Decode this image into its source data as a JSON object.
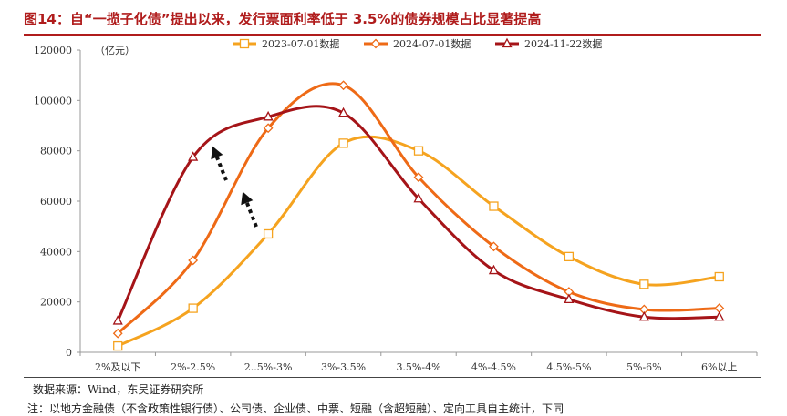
{
  "figure": {
    "title": "图14：自“一揽子化债”提出以来，发行票面利率低于 3.5%的债券规模占比显著提高",
    "source": "数据来源：Wind，东吴证券研究所",
    "note": "注：以地方金融债（不含政策性银行债）、公司债、企业债、中票、短融（含超短融）、定向工具自主统计，下同"
  },
  "colors": {
    "title": "#b01c1c",
    "series": [
      "#f5a31f",
      "#ee6a16",
      "#a51418"
    ],
    "arrow": "#111111",
    "axis": "#999999"
  },
  "chart_data": {
    "type": "line",
    "title": "",
    "xlabel": "",
    "ylabel": "（亿元）",
    "ylim": [
      0,
      120000
    ],
    "yticks": [
      0,
      20000,
      40000,
      60000,
      80000,
      100000,
      120000
    ],
    "ytick_labels": [
      "0",
      "20000",
      "40000",
      "60000",
      "80000",
      "100000",
      "120000"
    ],
    "grid": false,
    "legend_position": "top",
    "categories": [
      "2%及以下",
      "2%-2.5%",
      "2..5%-3%",
      "3%-3.5%",
      "3.5%-4%",
      "4%-4.5%",
      "4.5%-5%",
      "5%-6%",
      "6%以上"
    ],
    "series": [
      {
        "name": "2023-07-01数据",
        "marker": "square",
        "values": [
          2500,
          17500,
          47000,
          83000,
          80000,
          58000,
          38000,
          27000,
          30000
        ]
      },
      {
        "name": "2024-07-01数据",
        "marker": "diamond",
        "values": [
          7500,
          36500,
          89000,
          106000,
          69500,
          42000,
          24000,
          17000,
          17500
        ]
      },
      {
        "name": "2024-11-22数据",
        "marker": "triangle",
        "values": [
          12500,
          77500,
          93500,
          95000,
          61000,
          32500,
          21000,
          14000,
          14000
        ]
      }
    ]
  }
}
